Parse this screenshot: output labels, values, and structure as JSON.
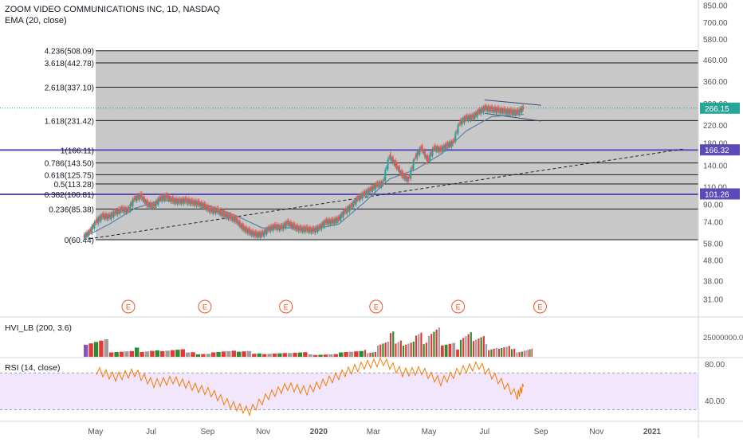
{
  "header": {
    "title": "ZOOM VIDEO COMMUNICATIONS INC, 1D, NASDAQ",
    "indicator": "EMA (20, close)"
  },
  "hvi": {
    "label": "HVI_LB (200, 3.6)",
    "axis_tick": "25000000.00"
  },
  "rsi": {
    "label": "RSI (14, close)",
    "axis_ticks": [
      "80.00",
      "40.00"
    ],
    "band": [
      30,
      70
    ]
  },
  "colors": {
    "up": "#26a69a",
    "down": "#ef5350",
    "vol_up": "#2e8b36",
    "vol_down": "#e53935",
    "vol_grey": "#9e9e9e",
    "vol_purple": "#7e57c2",
    "fib_fill": "#c8c8c8",
    "fib_line": "#1a1a1a",
    "highlight": "#5b4ab8",
    "rsi_band": "#f1e6fb",
    "rsi_line": "#f57c00",
    "ema": "#5b7fa8",
    "earnings": "#f4511e",
    "price_tag": "#26a69a"
  },
  "earnings_marker": "E",
  "chart_data": [
    {
      "type": "line",
      "title": "ZOOM VIDEO COMMUNICATIONS INC, 1D, NASDAQ",
      "scale": "log",
      "ylim": [
        26,
        900
      ],
      "y_ticks": [
        "850.00",
        "700.00",
        "580.00",
        "460.00",
        "360.00",
        "280.00",
        "220.00",
        "180.00",
        "140.00",
        "110.00",
        "90.00",
        "74.00",
        "58.00",
        "48.00",
        "38.00",
        "31.00"
      ],
      "x_ticks": [
        "May",
        "Jul",
        "Sep",
        "Nov",
        "2020",
        "Mar",
        "May",
        "Jul",
        "Sep",
        "Nov",
        "2021"
      ],
      "x_range": [
        "2019-04-18",
        "2021-02-05"
      ],
      "fib_levels": [
        {
          "label": "0(60.44)",
          "value": 60.44
        },
        {
          "label": "0.236(85.38)",
          "value": 85.38
        },
        {
          "label": "0.382(100.81)",
          "value": 100.81
        },
        {
          "label": "0.5(113.28)",
          "value": 113.28
        },
        {
          "label": "0.618(125.75)",
          "value": 125.75
        },
        {
          "label": "0.786(143.50)",
          "value": 143.5
        },
        {
          "label": "1(166.11)",
          "value": 166.11
        },
        {
          "label": "1.618(231.42)",
          "value": 231.42
        },
        {
          "label": "2.618(337.10)",
          "value": 337.1
        },
        {
          "label": "3.618(442.78)",
          "value": 442.78
        },
        {
          "label": "4.236(508.09)",
          "value": 508.09
        }
      ],
      "price_labels": [
        {
          "text": "266.15",
          "value": 266.15,
          "kind": "last"
        },
        {
          "text": "166.32",
          "value": 166.32,
          "kind": "level"
        },
        {
          "text": "101.26",
          "value": 101.26,
          "kind": "level"
        }
      ],
      "series": [
        {
          "name": "",
          "x": [
            "2019-04-18",
            "2019-04-25",
            "2019-05-02",
            "2019-05-09",
            "2019-05-16",
            "2019-05-23",
            "2019-05-30",
            "2019-06-06",
            "2019-06-13",
            "2019-06-20",
            "2019-06-27",
            "2019-07-04",
            "2019-07-11",
            "2019-07-18",
            "2019-07-25",
            "2019-08-01",
            "2019-08-08",
            "2019-08-15",
            "2019-08-22",
            "2019-08-29",
            "2019-09-05",
            "2019-09-12",
            "2019-09-19",
            "2019-09-26",
            "2019-10-03",
            "2019-10-10",
            "2019-10-17",
            "2019-10-24",
            "2019-10-31",
            "2019-11-07",
            "2019-11-14",
            "2019-11-21",
            "2019-11-28",
            "2019-12-05",
            "2019-12-12",
            "2019-12-19",
            "2019-12-26",
            "2020-01-02",
            "2020-01-09",
            "2020-01-16",
            "2020-01-23",
            "2020-01-30",
            "2020-02-06",
            "2020-02-13",
            "2020-02-20",
            "2020-02-27",
            "2020-03-05",
            "2020-03-12",
            "2020-03-19",
            "2020-03-26",
            "2020-04-02",
            "2020-04-09",
            "2020-04-16",
            "2020-04-23",
            "2020-04-30",
            "2020-05-07",
            "2020-05-14",
            "2020-05-21",
            "2020-05-28",
            "2020-06-04",
            "2020-06-11",
            "2020-06-18",
            "2020-06-25",
            "2020-07-02",
            "2020-07-09",
            "2020-07-16",
            "2020-07-23",
            "2020-07-30",
            "2020-08-06",
            "2020-08-13"
          ],
          "values": [
            62,
            66,
            74,
            79,
            78,
            82,
            85,
            84,
            96,
            99,
            90,
            88,
            96,
            98,
            94,
            93,
            94,
            92,
            91,
            88,
            84,
            84,
            80,
            78,
            75,
            69,
            66,
            64,
            64,
            68,
            70,
            69,
            73,
            70,
            68,
            68,
            67,
            69,
            74,
            74,
            76,
            83,
            88,
            96,
            101,
            106,
            112,
            114,
            155,
            140,
            125,
            118,
            152,
            170,
            147,
            170,
            166,
            175,
            180,
            225,
            238,
            240,
            255,
            266,
            262,
            260,
            257,
            255,
            253,
            266
          ]
        },
        {
          "name": "EMA (20, close)",
          "x": [
            "2019-04-18",
            "2019-05-16",
            "2019-06-13",
            "2019-07-11",
            "2019-08-08",
            "2019-09-05",
            "2019-10-03",
            "2019-10-31",
            "2019-11-28",
            "2019-12-26",
            "2020-01-23",
            "2020-02-20",
            "2020-03-19",
            "2020-04-16",
            "2020-05-14",
            "2020-06-11",
            "2020-07-09",
            "2020-08-13"
          ],
          "values": [
            62,
            72,
            86,
            94,
            93,
            88,
            79,
            69,
            69,
            68,
            72,
            92,
            120,
            133,
            158,
            206,
            242,
            248
          ]
        }
      ],
      "annotations": {
        "trendline": {
          "from": [
            "2019-04-18",
            60.44
          ],
          "to": [
            "2021-02-05",
            168
          ]
        },
        "channel_upper": {
          "from": [
            "2020-07-01",
            292
          ],
          "to": [
            "2020-09-01",
            275
          ]
        },
        "channel_lower": {
          "from": [
            "2020-07-01",
            251
          ],
          "to": [
            "2020-09-01",
            230
          ]
        },
        "earnings_dates": [
          "2019-06-06",
          "2019-08-29",
          "2019-11-26",
          "2020-03-04",
          "2020-06-02",
          "2020-08-31"
        ]
      }
    },
    {
      "type": "bar",
      "title": "HVI_LB (200, 3.6)",
      "y_ticks": [
        "25000000.00"
      ],
      "x": [
        "2019-04-18",
        "2019-05-16",
        "2019-06-13",
        "2019-07-11",
        "2019-08-08",
        "2019-09-05",
        "2019-10-03",
        "2019-10-31",
        "2019-11-28",
        "2019-12-26",
        "2020-01-23",
        "2020-02-20",
        "2020-03-05",
        "2020-03-19",
        "2020-04-02",
        "2020-04-16",
        "2020-04-30",
        "2020-05-14",
        "2020-06-04",
        "2020-06-18",
        "2020-07-02",
        "2020-07-16",
        "2020-07-30",
        "2020-08-13"
      ],
      "values": [
        20,
        5,
        8,
        7,
        4,
        6,
        5,
        4,
        4,
        3,
        5,
        6,
        14,
        22,
        15,
        21,
        31,
        12,
        28,
        18,
        11,
        10,
        7,
        8
      ]
    },
    {
      "type": "line",
      "title": "RSI (14, close)",
      "ylim": [
        20,
        85
      ],
      "y_ticks": [
        "80.00",
        "40.00"
      ],
      "series": [
        {
          "name": "",
          "x": [
            "2019-05-02",
            "2019-05-23",
            "2019-06-13",
            "2019-07-04",
            "2019-07-25",
            "2019-08-15",
            "2019-09-05",
            "2019-09-26",
            "2019-10-17",
            "2019-11-07",
            "2019-11-28",
            "2019-12-19",
            "2020-01-09",
            "2020-01-30",
            "2020-02-20",
            "2020-03-12",
            "2020-04-02",
            "2020-04-23",
            "2020-05-14",
            "2020-06-04",
            "2020-06-25",
            "2020-07-16",
            "2020-08-06",
            "2020-08-13"
          ],
          "values": [
            72,
            65,
            70,
            58,
            62,
            55,
            48,
            35,
            28,
            45,
            55,
            50,
            60,
            70,
            78,
            82,
            70,
            72,
            60,
            72,
            78,
            62,
            45,
            55
          ]
        }
      ]
    }
  ]
}
